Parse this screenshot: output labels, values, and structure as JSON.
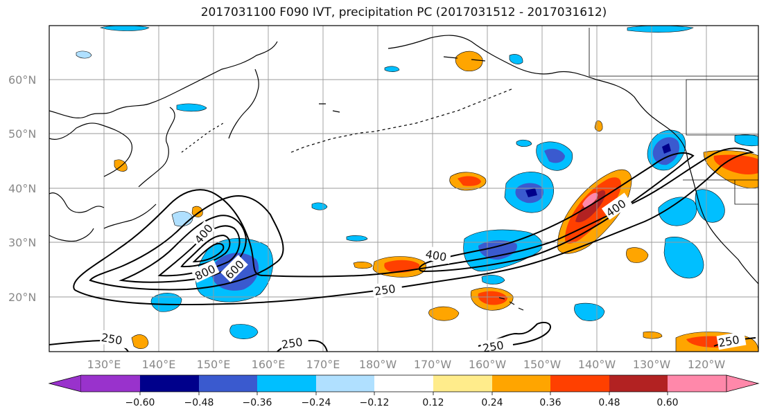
{
  "title": "2017031100 F090 IVT, precipitation PC (2017031512 - 2017031612)",
  "map": {
    "lon_labels": [
      "130°E",
      "140°E",
      "150°E",
      "160°E",
      "170°E",
      "180°W",
      "170°W",
      "160°W",
      "150°W",
      "140°W",
      "130°W",
      "120°W"
    ],
    "lat_labels": [
      "60°N",
      "50°N",
      "40°N",
      "30°N",
      "20°N"
    ],
    "contour_labels": [
      {
        "text": "400",
        "id": "ivt-400-west"
      },
      {
        "text": "800",
        "id": "ivt-800"
      },
      {
        "text": "600",
        "id": "ivt-600"
      },
      {
        "text": "400",
        "id": "ivt-400-mid"
      },
      {
        "text": "400",
        "id": "ivt-400-east"
      },
      {
        "text": "250",
        "id": "ivt-250-mid"
      },
      {
        "text": "250",
        "id": "ivt-250-sw"
      },
      {
        "text": "250",
        "id": "ivt-250-s"
      },
      {
        "text": "250",
        "id": "ivt-250-s2"
      },
      {
        "text": "250",
        "id": "ivt-250-se"
      }
    ]
  },
  "colorbar": {
    "tick_labels": [
      "−0.60",
      "−0.48",
      "−0.36",
      "−0.24",
      "−0.12",
      "0.12",
      "0.24",
      "0.36",
      "0.48",
      "0.60"
    ],
    "colors": [
      "#9932cc",
      "#00008b",
      "#3a5acf",
      "#00bfff",
      "#b0e0ff",
      "#ffffff",
      "#ffec8b",
      "#ffa500",
      "#ff4000",
      "#b22222",
      "#ff88aa"
    ]
  }
}
